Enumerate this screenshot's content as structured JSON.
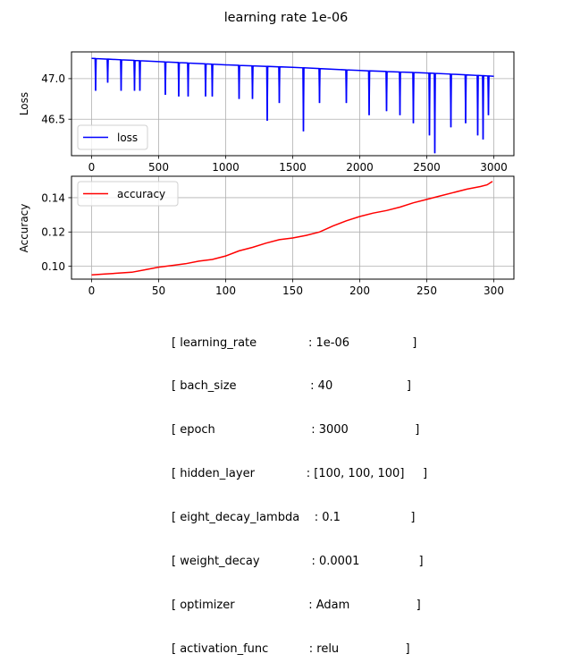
{
  "figure": {
    "title": "learning rate 1e-06"
  },
  "chart_data": [
    {
      "type": "line",
      "panel": "top",
      "ylabel": "Loss",
      "xlabel": "",
      "xlim": [
        -150,
        3150
      ],
      "ylim": [
        46.05,
        47.33
      ],
      "xticks": [
        0,
        500,
        1000,
        1500,
        2000,
        2500,
        3000
      ],
      "yticks": [
        46.5,
        47.0
      ],
      "ytick_labels": [
        "46.5",
        "47.0"
      ],
      "grid": true,
      "legend": "lower-left",
      "series": [
        {
          "name": "loss",
          "color": "#0000ff",
          "trend_x": [
            0,
            500,
            1000,
            1500,
            2000,
            2500,
            3000
          ],
          "trend_y": [
            47.25,
            47.21,
            47.17,
            47.14,
            47.1,
            47.07,
            47.03
          ],
          "spikes": [
            [
              30,
              46.85
            ],
            [
              120,
              46.95
            ],
            [
              220,
              46.85
            ],
            [
              320,
              46.85
            ],
            [
              360,
              46.85
            ],
            [
              550,
              46.8
            ],
            [
              650,
              46.78
            ],
            [
              720,
              46.78
            ],
            [
              850,
              46.78
            ],
            [
              900,
              46.78
            ],
            [
              1100,
              46.75
            ],
            [
              1200,
              46.75
            ],
            [
              1310,
              46.48
            ],
            [
              1400,
              46.7
            ],
            [
              1580,
              46.35
            ],
            [
              1700,
              46.7
            ],
            [
              1900,
              46.7
            ],
            [
              2070,
              46.55
            ],
            [
              2200,
              46.6
            ],
            [
              2300,
              46.55
            ],
            [
              2400,
              46.45
            ],
            [
              2520,
              46.3
            ],
            [
              2560,
              46.08
            ],
            [
              2680,
              46.4
            ],
            [
              2790,
              46.45
            ],
            [
              2880,
              46.3
            ],
            [
              2920,
              46.25
            ],
            [
              2960,
              46.55
            ]
          ]
        }
      ]
    },
    {
      "type": "line",
      "panel": "bottom",
      "ylabel": "Accuracy",
      "xlabel": "",
      "xlim": [
        -15,
        315
      ],
      "ylim": [
        0.0925,
        0.1525
      ],
      "xticks": [
        0,
        50,
        100,
        150,
        200,
        250,
        300
      ],
      "yticks": [
        0.1,
        0.12,
        0.14
      ],
      "ytick_labels": [
        "0.10",
        "0.12",
        "0.14"
      ],
      "grid": true,
      "legend": "upper-left",
      "series": [
        {
          "name": "accuracy",
          "color": "#ff0000",
          "x": [
            0,
            10,
            20,
            30,
            40,
            50,
            60,
            70,
            80,
            90,
            100,
            110,
            120,
            130,
            140,
            150,
            160,
            170,
            180,
            190,
            200,
            210,
            220,
            230,
            240,
            250,
            260,
            270,
            280,
            290,
            295,
            299
          ],
          "y": [
            0.095,
            0.0955,
            0.096,
            0.0965,
            0.098,
            0.0995,
            0.1005,
            0.1015,
            0.103,
            0.104,
            0.106,
            0.109,
            0.111,
            0.1135,
            0.1155,
            0.1165,
            0.118,
            0.12,
            0.1235,
            0.1265,
            0.129,
            0.131,
            0.1325,
            0.1345,
            0.137,
            0.139,
            0.141,
            0.143,
            0.145,
            0.1465,
            0.1475,
            0.1495
          ]
        }
      ]
    }
  ],
  "config": [
    "[ learning_rate              : 1e-06                 ]",
    "[ bach_size                    : 40                    ]",
    "[ epoch                          : 3000                  ]",
    "[ hidden_layer              : [100, 100, 100]     ]",
    "[ eight_decay_lambda    : 0.1                   ]",
    "[ weight_decay              : 0.0001                ]",
    "[ optimizer                    : Adam                  ]",
    "[ activation_func           : relu                  ]"
  ]
}
